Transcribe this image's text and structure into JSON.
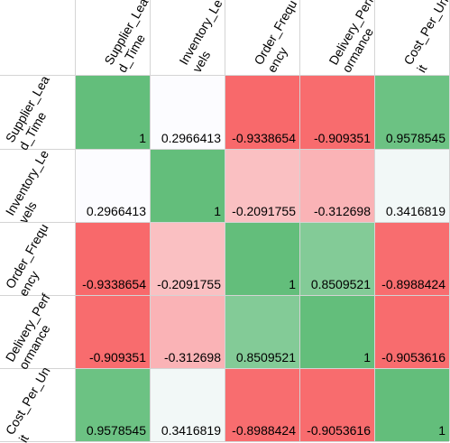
{
  "chart_data": {
    "type": "heatmap",
    "column_labels": [
      [
        "Supplier_Lea",
        "d_Time"
      ],
      [
        "Inventory_Le",
        "vels"
      ],
      [
        "Order_Frequ",
        "ency"
      ],
      [
        "Delivery_Perf",
        "ormance"
      ],
      [
        "Cost_Per_Un",
        "it"
      ]
    ],
    "row_labels": [
      [
        "Supplier_Lea",
        "d_Time"
      ],
      [
        "Inventory_Le",
        "vels"
      ],
      [
        "Order_Frequ",
        "ency"
      ],
      [
        "Delivery_Perf",
        "ormance"
      ],
      [
        "Cost_Per_Un",
        "it"
      ]
    ],
    "values": [
      [
        1,
        0.2966413,
        -0.9338654,
        -0.909351,
        0.9578545
      ],
      [
        0.2966413,
        1,
        -0.2091755,
        -0.312698,
        0.3416819
      ],
      [
        -0.9338654,
        -0.2091755,
        1,
        0.8509521,
        -0.8988424
      ],
      [
        -0.909351,
        -0.312698,
        0.8509521,
        1,
        -0.9053616
      ],
      [
        0.9578545,
        0.3416819,
        -0.8988424,
        -0.9053616,
        1
      ]
    ],
    "display_values": [
      [
        "1",
        "0.2966413",
        "-0.9338654",
        "-0.909351",
        "0.9578545"
      ],
      [
        "0.2966413",
        "1",
        "-0.2091755",
        "-0.312698",
        "0.3416819"
      ],
      [
        "-0.9338654",
        "-0.2091755",
        "1",
        "0.8509521",
        "-0.8988424"
      ],
      [
        "-0.909351",
        "-0.312698",
        "0.8509521",
        "1",
        "-0.9053616"
      ],
      [
        "0.9578545",
        "0.3416819",
        "-0.8988424",
        "-0.9053616",
        "1"
      ]
    ],
    "color_scale": {
      "low": "#f8696b",
      "mid": "#fcfcff",
      "high": "#63be7b"
    }
  }
}
